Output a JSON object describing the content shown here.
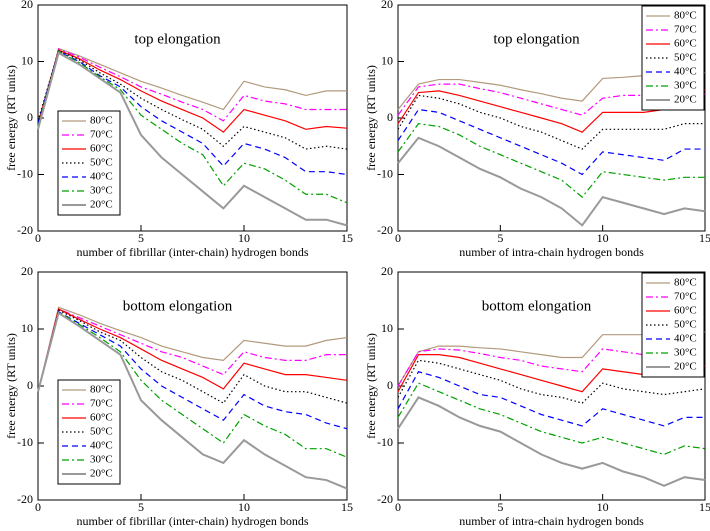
{
  "chart_data": [
    {
      "type": "line",
      "title": "top elongation",
      "x_label": "number of fibrillar (inter-chain) hydrogen bonds",
      "y_label": "free energy (RT units)",
      "x": [
        0,
        1,
        2,
        3,
        4,
        5,
        6,
        7,
        8,
        9,
        10,
        11,
        12,
        13,
        14,
        15
      ],
      "xlim": [
        0,
        15
      ],
      "xticks": [
        0,
        5,
        10,
        15
      ],
      "ylim": [
        -20,
        20
      ],
      "yticks": [
        -20,
        -10,
        0,
        10,
        20
      ],
      "legend": "lower left",
      "series": [
        {
          "name": "80°C",
          "color": "#b39a7d",
          "dash": "solid",
          "values": [
            -2,
            12.3,
            11,
            9.5,
            8,
            6.5,
            5.3,
            4,
            2.8,
            1.5,
            6.5,
            5.5,
            5,
            4,
            4.8,
            4.8
          ]
        },
        {
          "name": "70°C",
          "color": "#ff00ff",
          "dash": "dashdot",
          "values": [
            -1.5,
            12.2,
            10.8,
            9,
            7.3,
            5.5,
            4.2,
            2.8,
            1.5,
            -0.5,
            4,
            3,
            2.5,
            1.5,
            1.5,
            1.5
          ]
        },
        {
          "name": "60°C",
          "color": "#ff0000",
          "dash": "solid",
          "values": [
            -1,
            12,
            10.5,
            8.5,
            6.8,
            4.8,
            3,
            1.5,
            0,
            -2.5,
            1.5,
            0.5,
            -0.5,
            -2,
            -1.5,
            -1.8
          ]
        },
        {
          "name": "50°C",
          "color": "#000000",
          "dash": "dotted",
          "values": [
            -0.5,
            12,
            10.3,
            8,
            6,
            3.5,
            1.5,
            -0.3,
            -2,
            -5,
            -1.5,
            -2.5,
            -3.5,
            -5.5,
            -5,
            -5.5
          ]
        },
        {
          "name": "40°C",
          "color": "#0000ff",
          "dash": "dashed",
          "values": [
            -1,
            11.8,
            10,
            7.5,
            5.5,
            2,
            -0.5,
            -2.5,
            -4.5,
            -8.5,
            -4.5,
            -5.5,
            -7,
            -9.5,
            -9.5,
            -10
          ]
        },
        {
          "name": "30°C",
          "color": "#00a000",
          "dash": "dashdot",
          "values": [
            -1.5,
            11.8,
            9.8,
            7.3,
            5,
            0.5,
            -2,
            -4.5,
            -6.5,
            -12,
            -8,
            -9,
            -11,
            -13.5,
            -13.5,
            -15
          ]
        },
        {
          "name": "20°C",
          "color": "#999999",
          "dash": "thick",
          "values": [
            -2,
            11.5,
            9.5,
            7,
            4.5,
            -3,
            -7,
            -10,
            -13,
            -16,
            -12,
            -14,
            -16,
            -18,
            -18,
            -19
          ]
        }
      ]
    },
    {
      "type": "line",
      "title": "top elongation",
      "x_label": "number of intra-chain hydrogen bonds",
      "y_label": "free energy (RT units)",
      "x": [
        0,
        1,
        2,
        3,
        4,
        5,
        6,
        7,
        8,
        9,
        10,
        11,
        12,
        13,
        14,
        15
      ],
      "xlim": [
        0,
        15
      ],
      "xticks": [
        0,
        5,
        10,
        15
      ],
      "ylim": [
        -20,
        20
      ],
      "yticks": [
        -20,
        -10,
        0,
        10,
        20
      ],
      "legend": "upper right",
      "series": [
        {
          "name": "80°C",
          "color": "#b39a7d",
          "dash": "solid",
          "values": [
            1.5,
            6,
            6.8,
            6.8,
            6.3,
            5.8,
            5,
            4.3,
            3.5,
            3,
            7,
            7.2,
            7.5,
            7.8,
            8,
            8
          ]
        },
        {
          "name": "70°C",
          "color": "#ff00ff",
          "dash": "dashdot",
          "values": [
            0.5,
            5.5,
            6,
            6,
            5.2,
            4.5,
            3.5,
            2.5,
            1.5,
            0.5,
            3.5,
            4,
            4,
            4,
            4.2,
            4.2
          ]
        },
        {
          "name": "60°C",
          "color": "#ff0000",
          "dash": "solid",
          "values": [
            -1,
            4.5,
            4.8,
            4,
            3,
            2,
            1,
            0,
            -1,
            -2.5,
            1,
            1,
            1,
            1.5,
            3.5,
            5
          ]
        },
        {
          "name": "50°C",
          "color": "#000000",
          "dash": "dotted",
          "values": [
            -2,
            4,
            3.5,
            2.5,
            1,
            0,
            -1.5,
            -2.5,
            -4,
            -5.5,
            -2,
            -2,
            -2,
            -2,
            -1,
            -1
          ]
        },
        {
          "name": "40°C",
          "color": "#0000ff",
          "dash": "dashed",
          "values": [
            -4,
            1.5,
            1,
            -0.5,
            -2,
            -3.5,
            -5,
            -6.5,
            -8,
            -10,
            -6,
            -6.5,
            -7,
            -7.5,
            -5.5,
            -5.5
          ]
        },
        {
          "name": "30°C",
          "color": "#00a000",
          "dash": "dashdot",
          "values": [
            -6,
            -1,
            -1.5,
            -3,
            -5,
            -6.5,
            -8,
            -9.5,
            -11,
            -14,
            -9.5,
            -10,
            -10.5,
            -11,
            -10.5,
            -10.5
          ]
        },
        {
          "name": "20°C",
          "color": "#999999",
          "dash": "thick",
          "values": [
            -8,
            -3.5,
            -5,
            -7,
            -9,
            -10.5,
            -12.5,
            -14,
            -16,
            -19,
            -14,
            -15,
            -16,
            -17,
            -16,
            -16.5
          ]
        }
      ]
    },
    {
      "type": "line",
      "title": "bottom elongation",
      "x_label": "number of fibrillar (inter-chain) hydrogen bonds",
      "y_label": "free energy (RT units)",
      "x": [
        0,
        1,
        2,
        3,
        4,
        5,
        6,
        7,
        8,
        9,
        10,
        11,
        12,
        13,
        14,
        15
      ],
      "xlim": [
        0,
        15
      ],
      "xticks": [
        0,
        5,
        10,
        15
      ],
      "ylim": [
        -20,
        20
      ],
      "yticks": [
        -20,
        -10,
        0,
        10,
        20
      ],
      "legend": "lower left",
      "series": [
        {
          "name": "80°C",
          "color": "#b39a7d",
          "dash": "solid",
          "values": [
            -1,
            13.8,
            12.5,
            11,
            9.7,
            8.5,
            7,
            6,
            5,
            4.5,
            8,
            7.5,
            7,
            7,
            8,
            8.5
          ]
        },
        {
          "name": "70°C",
          "color": "#ff00ff",
          "dash": "dashdot",
          "values": [
            -1,
            13.5,
            12,
            10.5,
            9,
            7.5,
            6,
            5,
            3.5,
            2,
            6,
            5,
            4.5,
            4.5,
            5.5,
            5.5
          ]
        },
        {
          "name": "60°C",
          "color": "#ff0000",
          "dash": "solid",
          "values": [
            -1,
            13.5,
            11.7,
            10,
            8.5,
            6.5,
            4.5,
            3,
            1.5,
            -0.5,
            4,
            3,
            2,
            2,
            1.5,
            1
          ]
        },
        {
          "name": "50°C",
          "color": "#000000",
          "dash": "dotted",
          "values": [
            -1,
            13.3,
            11.5,
            9.5,
            8,
            5,
            2.5,
            1,
            -1,
            -3,
            2,
            0,
            -1,
            -1,
            -2,
            -3
          ]
        },
        {
          "name": "40°C",
          "color": "#0000ff",
          "dash": "dashed",
          "values": [
            -1,
            13,
            11,
            9,
            7,
            3,
            0,
            -2,
            -4,
            -6,
            -1.5,
            -3.5,
            -4.5,
            -5,
            -6.5,
            -7.5
          ]
        },
        {
          "name": "30°C",
          "color": "#00a000",
          "dash": "dashdot",
          "values": [
            -1,
            13,
            10.8,
            8.5,
            6,
            1,
            -2.5,
            -5,
            -7.5,
            -10,
            -5,
            -7,
            -8.5,
            -11,
            -11,
            -12.5
          ]
        },
        {
          "name": "20°C",
          "color": "#999999",
          "dash": "thick",
          "values": [
            -1,
            12.8,
            10.5,
            8,
            5.5,
            -2.5,
            -6,
            -9,
            -12,
            -13.5,
            -9.5,
            -12,
            -14,
            -16,
            -16.5,
            -18
          ]
        }
      ]
    },
    {
      "type": "line",
      "title": "bottom elongation",
      "x_label": "number of intra-chain hydrogen bonds",
      "y_label": "free energy (RT units)",
      "x": [
        0,
        1,
        2,
        3,
        4,
        5,
        6,
        7,
        8,
        9,
        10,
        11,
        12,
        13,
        14,
        15
      ],
      "xlim": [
        0,
        15
      ],
      "xticks": [
        0,
        5,
        10,
        15
      ],
      "ylim": [
        -20,
        20
      ],
      "yticks": [
        -20,
        -10,
        0,
        10,
        20
      ],
      "legend": "upper right",
      "series": [
        {
          "name": "80°C",
          "color": "#b39a7d",
          "dash": "solid",
          "values": [
            0,
            6,
            7,
            7,
            6.7,
            6.5,
            6,
            5.5,
            5,
            5,
            9,
            9,
            9,
            9,
            9.5,
            9.5
          ]
        },
        {
          "name": "70°C",
          "color": "#ff00ff",
          "dash": "dashdot",
          "values": [
            0,
            6,
            6.5,
            6.3,
            5.7,
            5,
            4.5,
            3.5,
            3,
            2.5,
            6.5,
            6,
            5.5,
            5.5,
            6,
            6
          ]
        },
        {
          "name": "60°C",
          "color": "#ff0000",
          "dash": "solid",
          "values": [
            -1,
            5.5,
            5.5,
            5,
            4,
            3,
            2,
            1,
            0,
            -1,
            3,
            2.5,
            2,
            2,
            3,
            3.5
          ]
        },
        {
          "name": "50°C",
          "color": "#000000",
          "dash": "dotted",
          "values": [
            -2,
            4.5,
            4,
            3,
            2,
            1,
            -0.5,
            -1.5,
            -2,
            -3,
            0.5,
            -0.5,
            -1,
            -1.5,
            -1,
            -0.5
          ]
        },
        {
          "name": "40°C",
          "color": "#0000ff",
          "dash": "dashed",
          "values": [
            -4,
            2.5,
            1.5,
            0,
            -1.5,
            -2,
            -3.5,
            -5,
            -6,
            -7,
            -4,
            -5,
            -6,
            -7,
            -5.5,
            -5.5
          ]
        },
        {
          "name": "30°C",
          "color": "#00a000",
          "dash": "dashdot",
          "values": [
            -5.5,
            0.5,
            -1,
            -2.5,
            -4,
            -5,
            -6.5,
            -8,
            -9,
            -10,
            -9,
            -10,
            -11,
            -12,
            -10.5,
            -11
          ]
        },
        {
          "name": "20°C",
          "color": "#999999",
          "dash": "thick",
          "values": [
            -7.5,
            -2,
            -3.5,
            -5.5,
            -7,
            -8,
            -10,
            -12,
            -13.5,
            -14.5,
            -13.5,
            -15,
            -16,
            -17.5,
            -16,
            -16.5
          ]
        }
      ]
    }
  ]
}
